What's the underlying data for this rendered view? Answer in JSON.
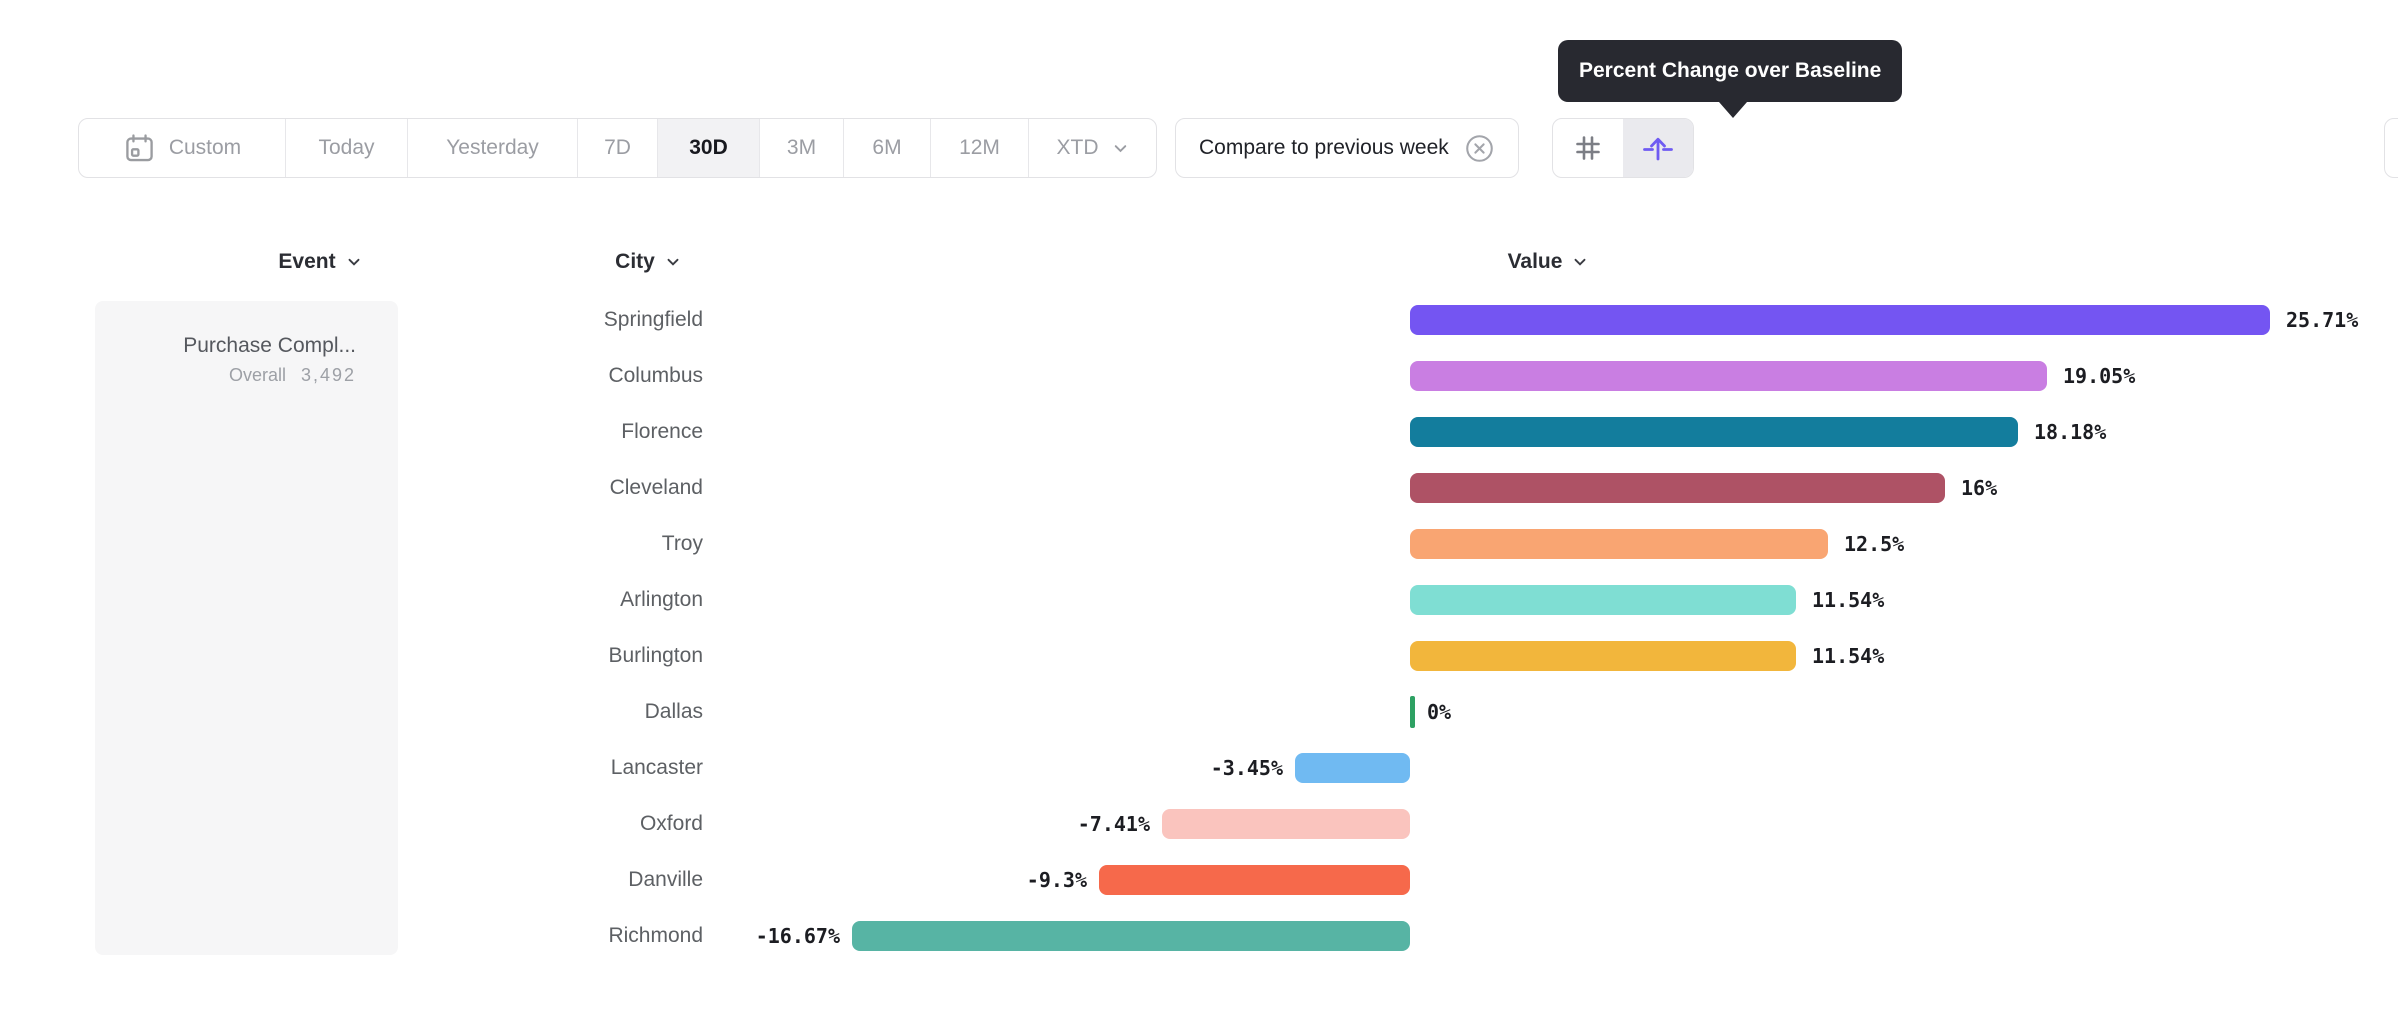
{
  "tooltip": {
    "text": "Percent Change over Baseline"
  },
  "toolbar": {
    "date_ranges": [
      {
        "label": "Custom",
        "icon": "calendar-icon",
        "selected": false
      },
      {
        "label": "Today",
        "selected": false
      },
      {
        "label": "Yesterday",
        "selected": false
      },
      {
        "label": "7D",
        "selected": false
      },
      {
        "label": "30D",
        "selected": true
      },
      {
        "label": "3M",
        "selected": false
      },
      {
        "label": "6M",
        "selected": false
      },
      {
        "label": "12M",
        "selected": false
      },
      {
        "label": "XTD",
        "icon": "chevron-down-icon",
        "selected": false
      }
    ],
    "compare": {
      "label": "Compare to previous week",
      "dismiss_icon": "x-circle-icon"
    },
    "view_toggle": [
      {
        "icon": "hash-grid-icon",
        "selected": false
      },
      {
        "icon": "uplift-arrow-icon",
        "selected": true,
        "tooltip": "Percent Change over Baseline"
      }
    ]
  },
  "columns": {
    "event": "Event",
    "city": "City",
    "value": "Value"
  },
  "event_panel": {
    "name": "Purchase Compl...",
    "overall_label": "Overall",
    "overall_value": "3,492"
  },
  "chart_data": {
    "type": "bar",
    "orientation": "horizontal",
    "title": "Percent Change over Baseline",
    "category_axis_label": "City",
    "value_axis_label": "Value",
    "unit": "%",
    "baseline": 0,
    "value_range_shown": [
      -16.67,
      25.71
    ],
    "categories": [
      "Springfield",
      "Columbus",
      "Florence",
      "Cleveland",
      "Troy",
      "Arlington",
      "Burlington",
      "Dallas",
      "Lancaster",
      "Oxford",
      "Danville",
      "Richmond"
    ],
    "values": [
      25.71,
      19.05,
      18.18,
      16,
      12.5,
      11.54,
      11.54,
      0,
      -3.45,
      -7.41,
      -9.3,
      -16.67
    ],
    "labels": [
      "25.71%",
      "19.05%",
      "18.18%",
      "16%",
      "12.5%",
      "11.54%",
      "11.54%",
      "0%",
      "-3.45%",
      "-7.41%",
      "-9.3%",
      "-16.67%"
    ],
    "colors": [
      "#7455F2",
      "#C97EE2",
      "#137D9D",
      "#AE5265",
      "#F9A572",
      "#7FDED3",
      "#F2B63C",
      "#2EA163",
      "#70BAF2",
      "#FAC4BE",
      "#F6694B",
      "#57B4A4"
    ],
    "grid": false,
    "legend": false
  }
}
